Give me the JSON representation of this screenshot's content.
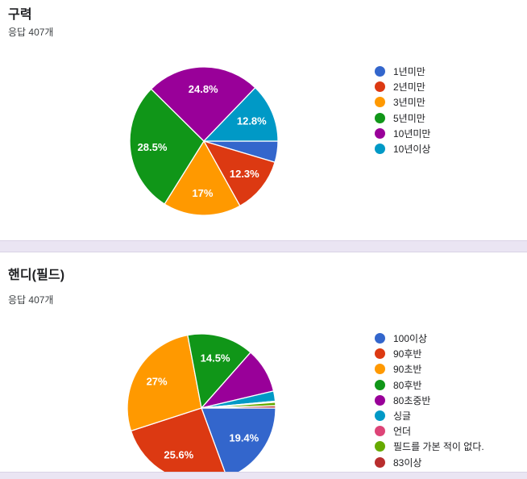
{
  "sections": [
    {
      "title": "구력",
      "responses": "응답 407개"
    },
    {
      "title": "핸디(필드)",
      "responses": "응답 407개"
    }
  ],
  "palette": {
    "blue": "#3366CC",
    "red": "#DC3912",
    "orange": "#FF9900",
    "green": "#109618",
    "purple": "#990099",
    "cyan": "#0099C6",
    "pink": "#DD4477",
    "light_green": "#66AA00",
    "dark_red": "#B82E2E"
  },
  "chart_data": [
    {
      "type": "pie",
      "title": "구력",
      "subtitle": "응답 407개",
      "legend_position": "right",
      "start_angle_deg": 0,
      "direction": "clockwise",
      "slices": [
        {
          "label": "1년미만",
          "pct": 4.6,
          "pct_label": "",
          "color": "#3366CC"
        },
        {
          "label": "2년미만",
          "pct": 12.3,
          "pct_label": "12.3%",
          "color": "#DC3912"
        },
        {
          "label": "3년미만",
          "pct": 17.0,
          "pct_label": "17%",
          "color": "#FF9900"
        },
        {
          "label": "5년미만",
          "pct": 28.5,
          "pct_label": "28.5%",
          "color": "#109618"
        },
        {
          "label": "10년미만",
          "pct": 24.8,
          "pct_label": "24.8%",
          "color": "#990099"
        },
        {
          "label": "10년이상",
          "pct": 12.8,
          "pct_label": "12.8%",
          "color": "#0099C6"
        }
      ]
    },
    {
      "type": "pie",
      "title": "핸디(필드)",
      "subtitle": "응답 407개",
      "legend_position": "right",
      "start_angle_deg": 0,
      "direction": "clockwise",
      "slices": [
        {
          "label": "100이상",
          "pct": 19.4,
          "pct_label": "19.4%",
          "color": "#3366CC"
        },
        {
          "label": "90후반",
          "pct": 25.6,
          "pct_label": "25.6%",
          "color": "#DC3912"
        },
        {
          "label": "90초반",
          "pct": 27.0,
          "pct_label": "27%",
          "color": "#FF9900"
        },
        {
          "label": "80후반",
          "pct": 14.5,
          "pct_label": "14.5%",
          "color": "#109618"
        },
        {
          "label": "80초중반",
          "pct": 9.8,
          "pct_label": "",
          "color": "#990099"
        },
        {
          "label": "싱글",
          "pct": 2.2,
          "pct_label": "",
          "color": "#0099C6"
        },
        {
          "label": "언더",
          "pct": 0.25,
          "pct_label": "",
          "color": "#DD4477"
        },
        {
          "label": "필드를 가본 적이 없다.",
          "pct": 0.74,
          "pct_label": "",
          "color": "#66AA00"
        },
        {
          "label": "83이상",
          "pct": 0.49,
          "pct_label": "",
          "color": "#B82E2E"
        }
      ]
    }
  ]
}
